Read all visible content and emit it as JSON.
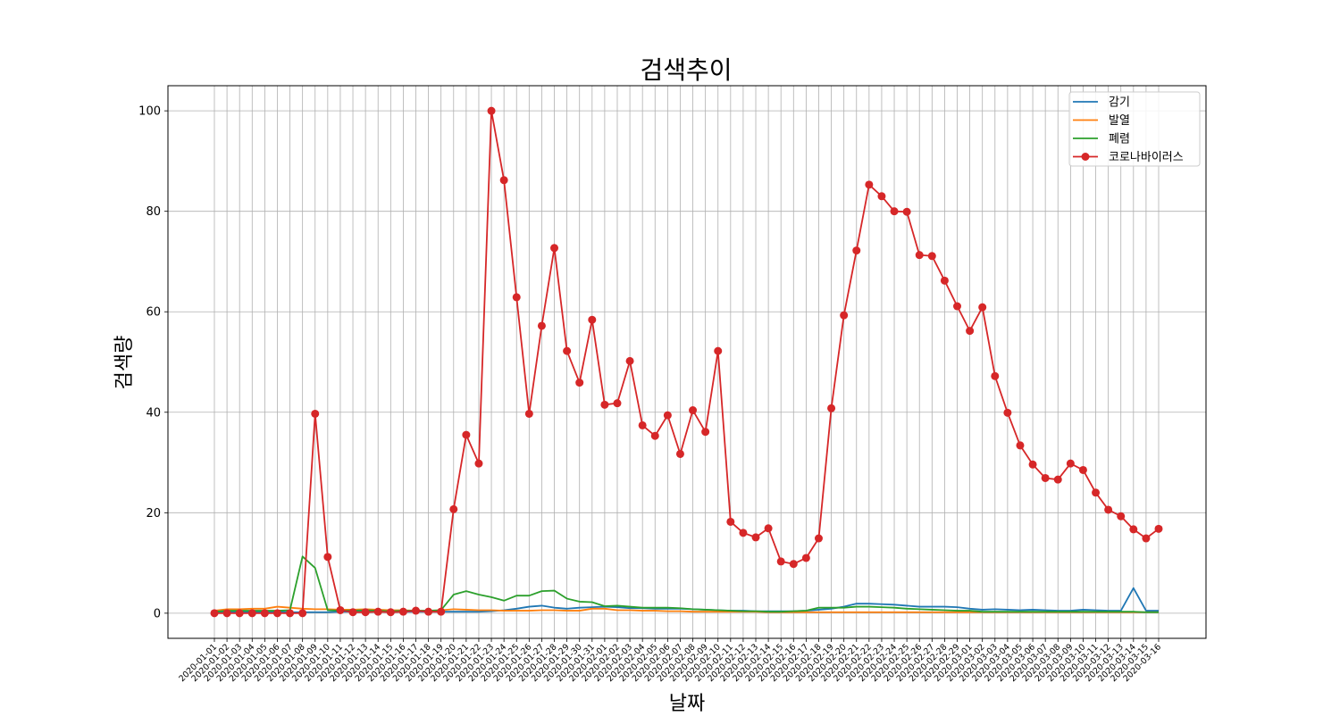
{
  "chart_data": {
    "type": "line",
    "title": "검색추이",
    "xlabel": "날짜",
    "ylabel": "검색량",
    "ylim": [
      -5,
      105
    ],
    "yticks": [
      0,
      20,
      40,
      60,
      80,
      100
    ],
    "grid": true,
    "legend_position": "top-right",
    "x": [
      "2020-01-01",
      "2020-01-02",
      "2020-01-03",
      "2020-01-04",
      "2020-01-05",
      "2020-01-06",
      "2020-01-07",
      "2020-01-08",
      "2020-01-09",
      "2020-01-10",
      "2020-01-11",
      "2020-01-12",
      "2020-01-13",
      "2020-01-14",
      "2020-01-15",
      "2020-01-16",
      "2020-01-17",
      "2020-01-18",
      "2020-01-19",
      "2020-01-20",
      "2020-01-21",
      "2020-01-22",
      "2020-01-23",
      "2020-01-24",
      "2020-01-25",
      "2020-01-26",
      "2020-01-27",
      "2020-01-28",
      "2020-01-29",
      "2020-01-30",
      "2020-01-31",
      "2020-02-01",
      "2020-02-02",
      "2020-02-03",
      "2020-02-04",
      "2020-02-05",
      "2020-02-06",
      "2020-02-07",
      "2020-02-08",
      "2020-02-09",
      "2020-02-10",
      "2020-02-11",
      "2020-02-12",
      "2020-02-13",
      "2020-02-14",
      "2020-02-15",
      "2020-02-16",
      "2020-02-17",
      "2020-02-18",
      "2020-02-19",
      "2020-02-20",
      "2020-02-21",
      "2020-02-22",
      "2020-02-23",
      "2020-02-24",
      "2020-02-25",
      "2020-02-26",
      "2020-02-27",
      "2020-02-28",
      "2020-02-29",
      "2020-03-01",
      "2020-03-02",
      "2020-03-03",
      "2020-03-04",
      "2020-03-05",
      "2020-03-06",
      "2020-03-07",
      "2020-03-08",
      "2020-03-09",
      "2020-03-10",
      "2020-03-11",
      "2020-03-12",
      "2020-03-13",
      "2020-03-14",
      "2020-03-15",
      "2020-03-16"
    ],
    "series": [
      {
        "name": "감기",
        "color": "#1f77b4",
        "markers": false,
        "values": [
          0.3,
          0.3,
          0.3,
          0.3,
          0.3,
          0.3,
          0.2,
          0.2,
          0.2,
          0.2,
          0.3,
          0.3,
          0.3,
          0.3,
          0.3,
          0.3,
          0.3,
          0.3,
          0.3,
          0.3,
          0.3,
          0.3,
          0.4,
          0.6,
          0.9,
          1.3,
          1.5,
          1.1,
          0.9,
          1.1,
          1.2,
          1.3,
          1.2,
          1.0,
          1.0,
          0.9,
          0.9,
          0.9,
          0.8,
          0.7,
          0.6,
          0.5,
          0.5,
          0.4,
          0.4,
          0.4,
          0.4,
          0.5,
          0.7,
          0.9,
          1.3,
          1.9,
          1.9,
          1.8,
          1.7,
          1.5,
          1.3,
          1.3,
          1.3,
          1.2,
          0.9,
          0.7,
          0.8,
          0.7,
          0.6,
          0.7,
          0.6,
          0.5,
          0.5,
          0.7,
          0.6,
          0.5,
          0.5,
          5.0,
          0.5,
          0.5
        ]
      },
      {
        "name": "발열",
        "color": "#ff7f0e",
        "markers": false,
        "values": [
          0.5,
          0.8,
          0.8,
          0.9,
          0.9,
          1.3,
          1.1,
          0.9,
          0.8,
          0.8,
          0.7,
          0.7,
          0.8,
          0.7,
          0.6,
          0.6,
          0.5,
          0.5,
          0.6,
          0.8,
          0.7,
          0.6,
          0.6,
          0.5,
          0.5,
          0.5,
          0.6,
          0.6,
          0.5,
          0.5,
          0.9,
          0.9,
          0.6,
          0.6,
          0.5,
          0.5,
          0.4,
          0.4,
          0.3,
          0.3,
          0.3,
          0.3,
          0.3,
          0.3,
          0.2,
          0.2,
          0.2,
          0.2,
          0.2,
          0.2,
          0.2,
          0.2,
          0.2,
          0.2,
          0.2,
          0.2,
          0.2,
          0.2,
          0.2,
          0.2,
          0.2,
          0.2,
          0.2,
          0.2,
          0.2,
          0.2,
          0.2,
          0.2,
          0.2,
          0.2,
          0.2,
          0.2,
          0.2,
          0.2,
          0.2,
          0.2
        ]
      },
      {
        "name": "폐렴",
        "color": "#2ca02c",
        "markers": false,
        "values": [
          0.3,
          0.5,
          0.5,
          0.5,
          0.5,
          0.5,
          0.6,
          11.3,
          9.0,
          0.6,
          0.5,
          0.5,
          0.6,
          0.5,
          0.4,
          0.5,
          0.5,
          0.5,
          0.6,
          3.7,
          4.4,
          3.7,
          3.2,
          2.5,
          3.5,
          3.5,
          4.4,
          4.5,
          2.9,
          2.3,
          2.2,
          1.4,
          1.5,
          1.3,
          1.1,
          1.1,
          1.1,
          1.0,
          0.8,
          0.7,
          0.6,
          0.5,
          0.4,
          0.4,
          0.3,
          0.3,
          0.4,
          0.5,
          1.1,
          1.1,
          1.1,
          1.3,
          1.3,
          1.2,
          1.1,
          0.9,
          0.8,
          0.7,
          0.6,
          0.5,
          0.5,
          0.3,
          0.3,
          0.3,
          0.3,
          0.3,
          0.3,
          0.3,
          0.3,
          0.3,
          0.3,
          0.3,
          0.3,
          0.3,
          0.2,
          0.2
        ]
      },
      {
        "name": "코로나바이러스",
        "color": "#d62728",
        "markers": true,
        "values": [
          0,
          0,
          0,
          0,
          0,
          0,
          0,
          0,
          39.7,
          11.2,
          0.6,
          0.2,
          0.2,
          0.3,
          0.2,
          0.3,
          0.5,
          0.3,
          0.3,
          20.7,
          35.5,
          29.8,
          100,
          86.2,
          62.9,
          39.7,
          57.2,
          72.7,
          52.2,
          45.9,
          58.4,
          41.5,
          41.8,
          50.2,
          37.4,
          35.3,
          39.4,
          31.7,
          40.4,
          36.1,
          52.2,
          18.2,
          16.0,
          15.1,
          16.9,
          10.3,
          9.8,
          11.0,
          14.9,
          40.8,
          59.3,
          72.2,
          85.3,
          83.0,
          80.0,
          79.9,
          71.3,
          71.1,
          66.2,
          61.1,
          56.2,
          60.9,
          47.2,
          39.9,
          33.4,
          29.6,
          26.9,
          26.6,
          29.8,
          28.5,
          24.0,
          20.6,
          19.3,
          16.7,
          14.9,
          16.8
        ]
      }
    ]
  }
}
